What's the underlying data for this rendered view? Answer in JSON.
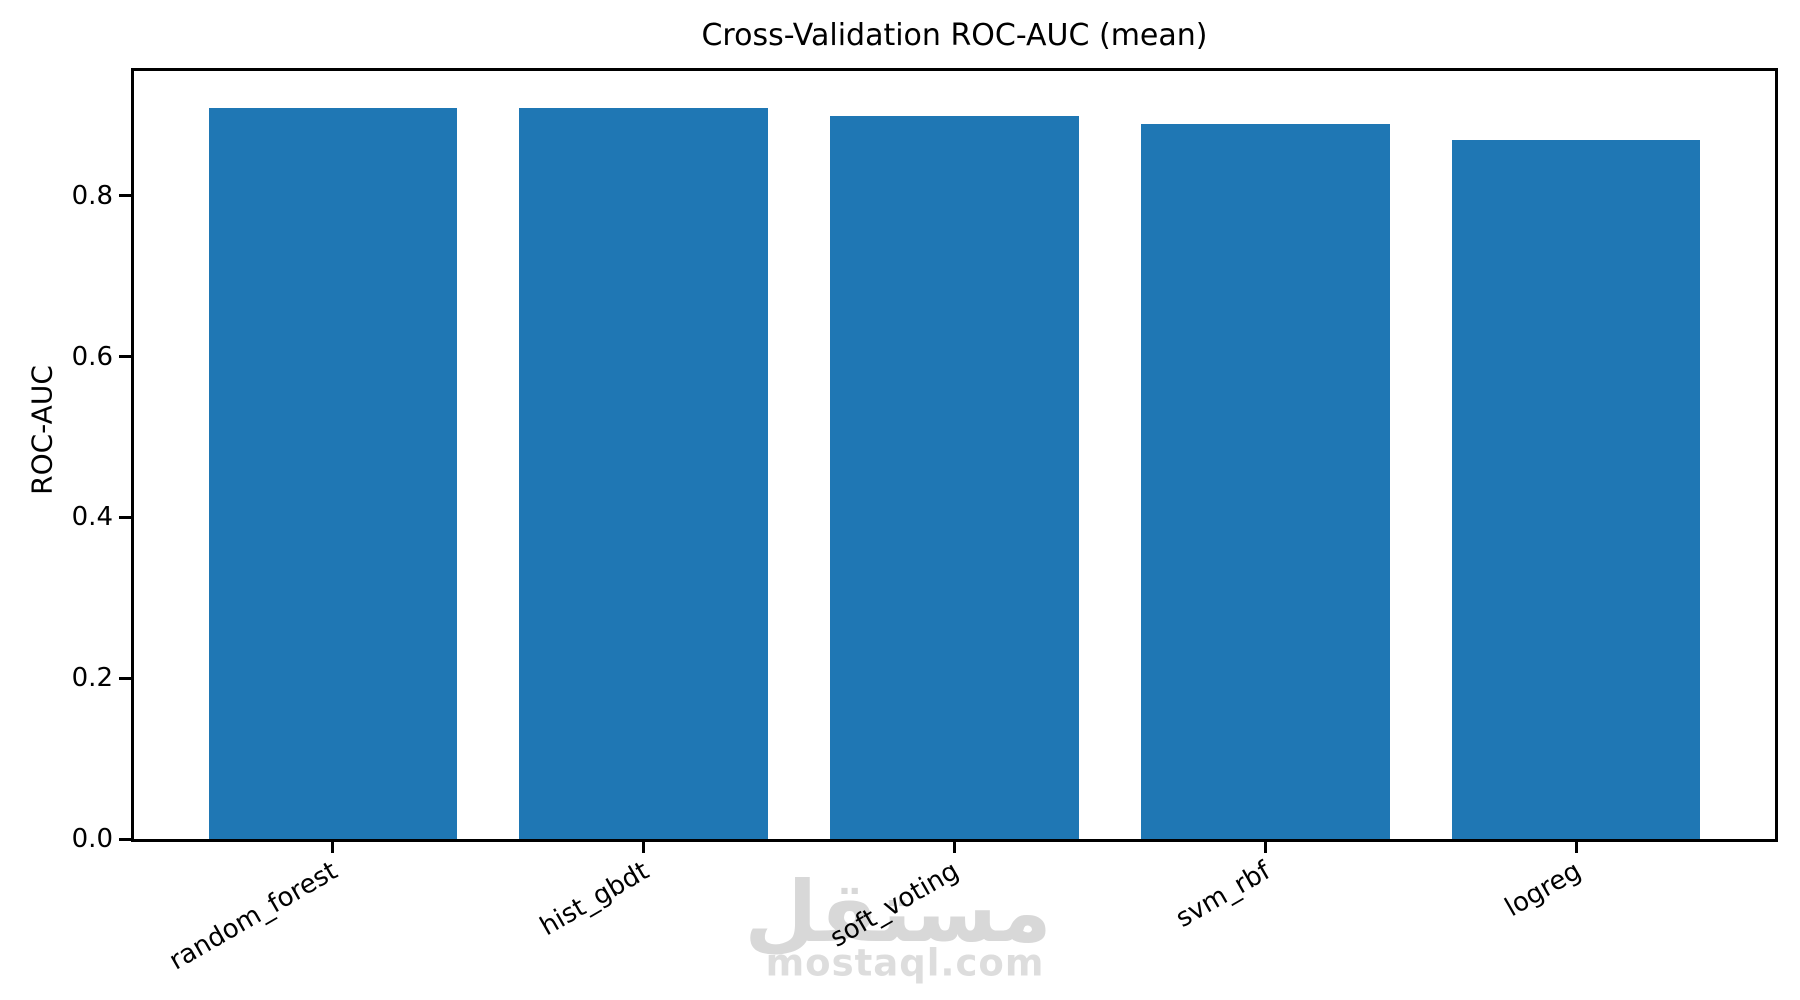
{
  "chart_data": {
    "type": "bar",
    "title": "Cross-Validation ROC-AUC (mean)",
    "xlabel": "",
    "ylabel": "ROC-AUC",
    "categories": [
      "random_forest",
      "hist_gbdt",
      "soft_voting",
      "svm_rbf",
      "logreg"
    ],
    "values": [
      0.91,
      0.91,
      0.9,
      0.89,
      0.87
    ],
    "bar_color": "#1f77b4",
    "bar_width": 0.8,
    "xlim": [
      -0.64,
      4.64
    ],
    "ylim": [
      0,
      0.9555
    ],
    "yticks": [
      0.0,
      0.2,
      0.4,
      0.6,
      0.8
    ],
    "ytick_labels": [
      "0.0",
      "0.2",
      "0.4",
      "0.6",
      "0.8"
    ],
    "xtick_rotation_deg": 30,
    "grid": false,
    "legend": null,
    "axis_color": "#000000",
    "background_color": "#ffffff"
  },
  "watermark": {
    "logo_text": "مستقل",
    "url_text": "mostaql.com",
    "color": "#d8d8d8"
  }
}
